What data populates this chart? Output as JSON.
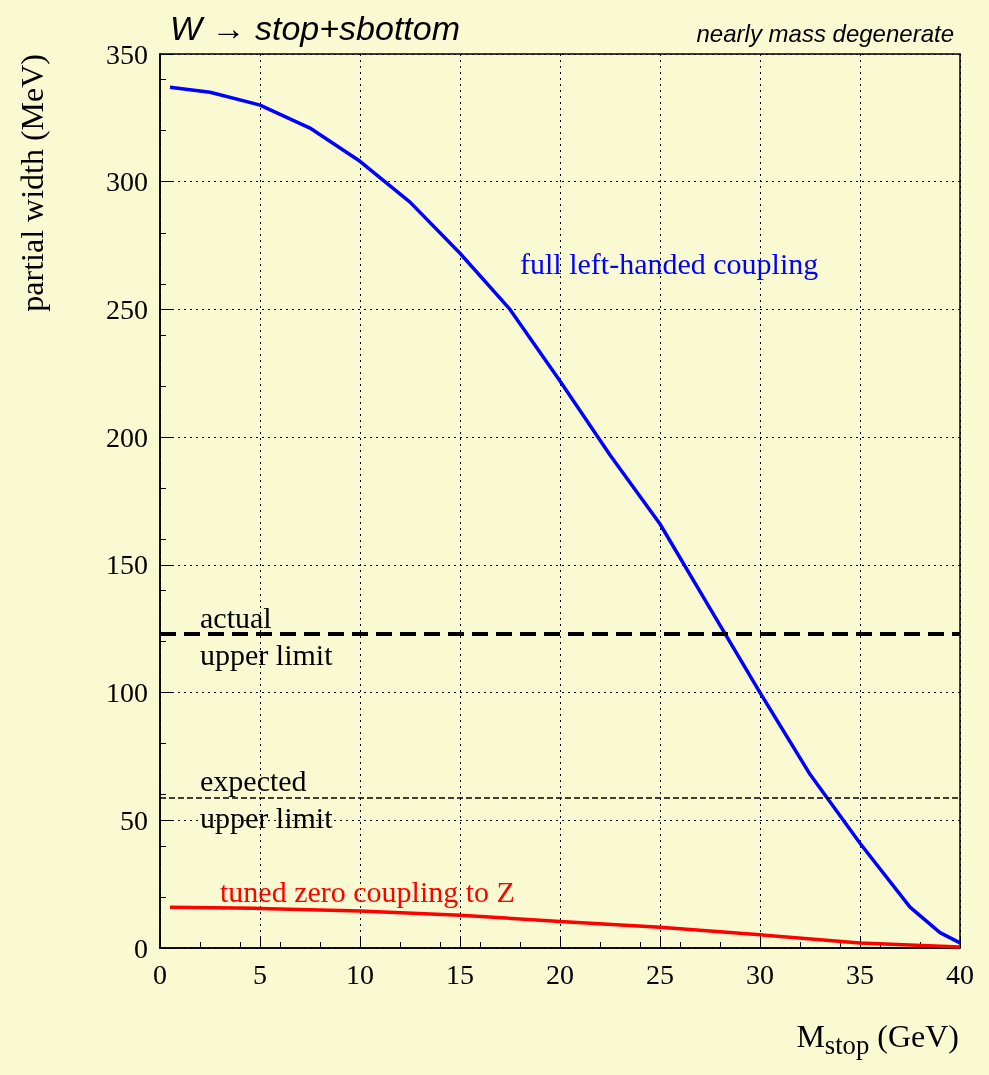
{
  "chart_data": {
    "type": "line",
    "title": "W → stop+sbottom",
    "subtitle": "nearly mass degenerate",
    "xlabel": "M$_{stop}$ (GeV)",
    "ylabel": "partial width (MeV)",
    "series": [
      {
        "name": "full left-handed coupling",
        "color": "#0000ff",
        "x": [
          0.5,
          2.5,
          5,
          7.5,
          10,
          12.5,
          15,
          17.5,
          20,
          22.5,
          25,
          27.5,
          30,
          32.5,
          35,
          37.5,
          39,
          40
        ],
        "values": [
          337,
          335,
          330,
          321,
          308,
          292,
          272,
          250,
          222,
          193,
          166,
          133,
          100,
          68,
          41,
          16,
          6,
          2
        ]
      },
      {
        "name": "tuned zero coupling to Z",
        "color": "#ff0000",
        "x": [
          0.5,
          5,
          10,
          15,
          20,
          25,
          30,
          35,
          40
        ],
        "values": [
          16,
          15.5,
          14.5,
          12.8,
          10.4,
          8.1,
          5.2,
          2,
          0.4
        ]
      }
    ],
    "ref_lines": [
      {
        "axis": "y",
        "value": 123,
        "label": "actual\nupper limit",
        "color": "#000000",
        "line_style": "dashed"
      },
      {
        "axis": "y",
        "value": 59,
        "label": "expected\nupper limit",
        "color": "#000000",
        "line_style": "dashed"
      }
    ],
    "xlim": [
      0,
      40
    ],
    "xticks": [
      0,
      5,
      10,
      15,
      20,
      25,
      30,
      35,
      40
    ],
    "ylim": [
      0,
      350
    ],
    "yticks": [
      0,
      50,
      100,
      150,
      200,
      250,
      300,
      350
    ],
    "grid": true,
    "legend": false,
    "marker": "none",
    "line_style": "solid"
  }
}
